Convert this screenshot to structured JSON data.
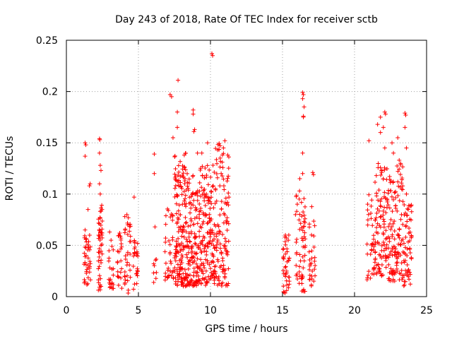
{
  "chart_data": {
    "type": "scatter",
    "title": "Day 243 of 2018, Rate Of TEC Index for receiver sctb",
    "xlabel": "GPS time / hours",
    "ylabel": "ROTI / TECUs",
    "xlim": [
      0,
      25
    ],
    "ylim": [
      0,
      0.25
    ],
    "xticks": [
      0,
      5,
      10,
      15,
      20,
      25
    ],
    "xtick_labels": [
      "0",
      "5",
      "10",
      "15",
      "20",
      "25"
    ],
    "yticks": [
      0,
      0.05,
      0.1,
      0.15,
      0.2,
      0.25
    ],
    "ytick_labels": [
      "0",
      "0.05",
      "0.1",
      "0.15",
      "0.2",
      "0.25"
    ],
    "grid": true,
    "marker": "plus",
    "color": "#ff0000",
    "clusters": [
      {
        "x": [
          1.2,
          1.7
        ],
        "y": [
          0.01,
          0.06
        ],
        "n": 38,
        "outliers": [
          [
            1.3,
            0.15
          ],
          [
            1.35,
            0.148
          ],
          [
            1.3,
            0.137
          ],
          [
            1.6,
            0.108
          ],
          [
            1.65,
            0.11
          ],
          [
            1.5,
            0.085
          ],
          [
            1.3,
            0.065
          ]
        ]
      },
      {
        "x": [
          2.2,
          2.5
        ],
        "y": [
          0.006,
          0.09
        ],
        "n": 48,
        "outliers": [
          [
            2.3,
            0.154
          ],
          [
            2.32,
            0.153
          ],
          [
            2.3,
            0.14
          ],
          [
            2.35,
            0.128
          ],
          [
            2.4,
            0.123
          ],
          [
            2.3,
            0.11
          ],
          [
            2.35,
            0.1
          ]
        ]
      },
      {
        "x": [
          2.9,
          3.3
        ],
        "y": [
          0.008,
          0.05
        ],
        "n": 22,
        "outliers": [
          [
            3.0,
            0.063
          ],
          [
            3.1,
            0.055
          ]
        ]
      },
      {
        "x": [
          3.5,
          3.9
        ],
        "y": [
          0.006,
          0.06
        ],
        "n": 22,
        "outliers": [
          [
            3.7,
            0.062
          ]
        ]
      },
      {
        "x": [
          4.0,
          4.5
        ],
        "y": [
          0.003,
          0.08
        ],
        "n": 34,
        "outliers": [
          [
            4.2,
            0.08
          ],
          [
            4.3,
            0.077
          ]
        ]
      },
      {
        "x": [
          4.6,
          5.0
        ],
        "y": [
          0.005,
          0.055
        ],
        "n": 24,
        "outliers": [
          [
            4.7,
            0.097
          ]
        ]
      },
      {
        "x": [
          6.0,
          6.3
        ],
        "y": [
          0.01,
          0.04
        ],
        "n": 8,
        "outliers": [
          [
            6.1,
            0.139
          ],
          [
            6.1,
            0.12
          ],
          [
            6.15,
            0.068
          ]
        ]
      },
      {
        "x": [
          6.8,
          7.5
        ],
        "y": [
          0.015,
          0.09
        ],
        "n": 36,
        "outliers": [
          [
            7.2,
            0.197
          ],
          [
            7.3,
            0.195
          ],
          [
            7.4,
            0.155
          ]
        ]
      },
      {
        "x": [
          7.5,
          8.3
        ],
        "y": [
          0.01,
          0.14
        ],
        "n": 150,
        "outliers": [
          [
            7.75,
            0.211
          ],
          [
            7.7,
            0.18
          ],
          [
            7.7,
            0.165
          ]
        ]
      },
      {
        "x": [
          8.3,
          9.2
        ],
        "y": [
          0.01,
          0.12
        ],
        "n": 140,
        "outliers": [
          [
            8.8,
            0.182
          ],
          [
            8.8,
            0.178
          ],
          [
            8.9,
            0.163
          ],
          [
            8.85,
            0.161
          ],
          [
            9.1,
            0.14
          ]
        ]
      },
      {
        "x": [
          9.2,
          10.3
        ],
        "y": [
          0.01,
          0.13
        ],
        "n": 160,
        "outliers": [
          [
            10.1,
            0.237
          ],
          [
            10.15,
            0.235
          ],
          [
            9.8,
            0.15
          ],
          [
            9.4,
            0.14
          ]
        ]
      },
      {
        "x": [
          10.3,
          11.3
        ],
        "y": [
          0.01,
          0.15
        ],
        "n": 120,
        "outliers": [
          [
            11.0,
            0.152
          ],
          [
            10.9,
            0.145
          ]
        ]
      },
      {
        "x": [
          15.0,
          15.5
        ],
        "y": [
          0.002,
          0.06
        ],
        "n": 40,
        "outliers": [
          [
            15.2,
            0.06
          ],
          [
            15.4,
            0.055
          ]
        ]
      },
      {
        "x": [
          15.9,
          16.3
        ],
        "y": [
          0.01,
          0.11
        ],
        "n": 24,
        "outliers": [
          [
            16.2,
            0.115
          ],
          [
            15.9,
            0.08
          ]
        ]
      },
      {
        "x": [
          16.3,
          16.6
        ],
        "y": [
          0.005,
          0.1
        ],
        "n": 36,
        "outliers": [
          [
            16.4,
            0.199
          ],
          [
            16.45,
            0.197
          ],
          [
            16.4,
            0.193
          ],
          [
            16.5,
            0.185
          ],
          [
            16.45,
            0.176
          ],
          [
            16.45,
            0.175
          ],
          [
            16.4,
            0.14
          ],
          [
            16.4,
            0.12
          ]
        ]
      },
      {
        "x": [
          16.8,
          17.3
        ],
        "y": [
          0.01,
          0.09
        ],
        "n": 30,
        "outliers": [
          [
            17.1,
            0.121
          ],
          [
            17.15,
            0.119
          ]
        ]
      },
      {
        "x": [
          20.8,
          21.3
        ],
        "y": [
          0.015,
          0.1
        ],
        "n": 24,
        "outliers": [
          [
            21.0,
            0.152
          ],
          [
            21.1,
            0.018
          ]
        ]
      },
      {
        "x": [
          21.3,
          22.3
        ],
        "y": [
          0.02,
          0.13
        ],
        "n": 110,
        "outliers": [
          [
            21.6,
            0.168
          ],
          [
            21.8,
            0.175
          ],
          [
            22.1,
            0.18
          ],
          [
            22.15,
            0.178
          ],
          [
            22.0,
            0.165
          ],
          [
            22.1,
            0.145
          ],
          [
            21.8,
            0.16
          ]
        ]
      },
      {
        "x": [
          22.3,
          22.9
        ],
        "y": [
          0.015,
          0.12
        ],
        "n": 70,
        "outliers": [
          [
            22.6,
            0.15
          ],
          [
            22.7,
            0.14
          ]
        ]
      },
      {
        "x": [
          22.9,
          23.4
        ],
        "y": [
          0.015,
          0.13
        ],
        "n": 55,
        "outliers": [
          [
            23.0,
            0.155
          ],
          [
            23.1,
            0.133
          ]
        ]
      },
      {
        "x": [
          23.4,
          24.0
        ],
        "y": [
          0.01,
          0.09
        ],
        "n": 60,
        "outliers": [
          [
            23.5,
            0.179
          ],
          [
            23.55,
            0.177
          ],
          [
            23.5,
            0.165
          ],
          [
            23.6,
            0.145
          ],
          [
            23.6,
            0.1
          ]
        ]
      }
    ]
  }
}
